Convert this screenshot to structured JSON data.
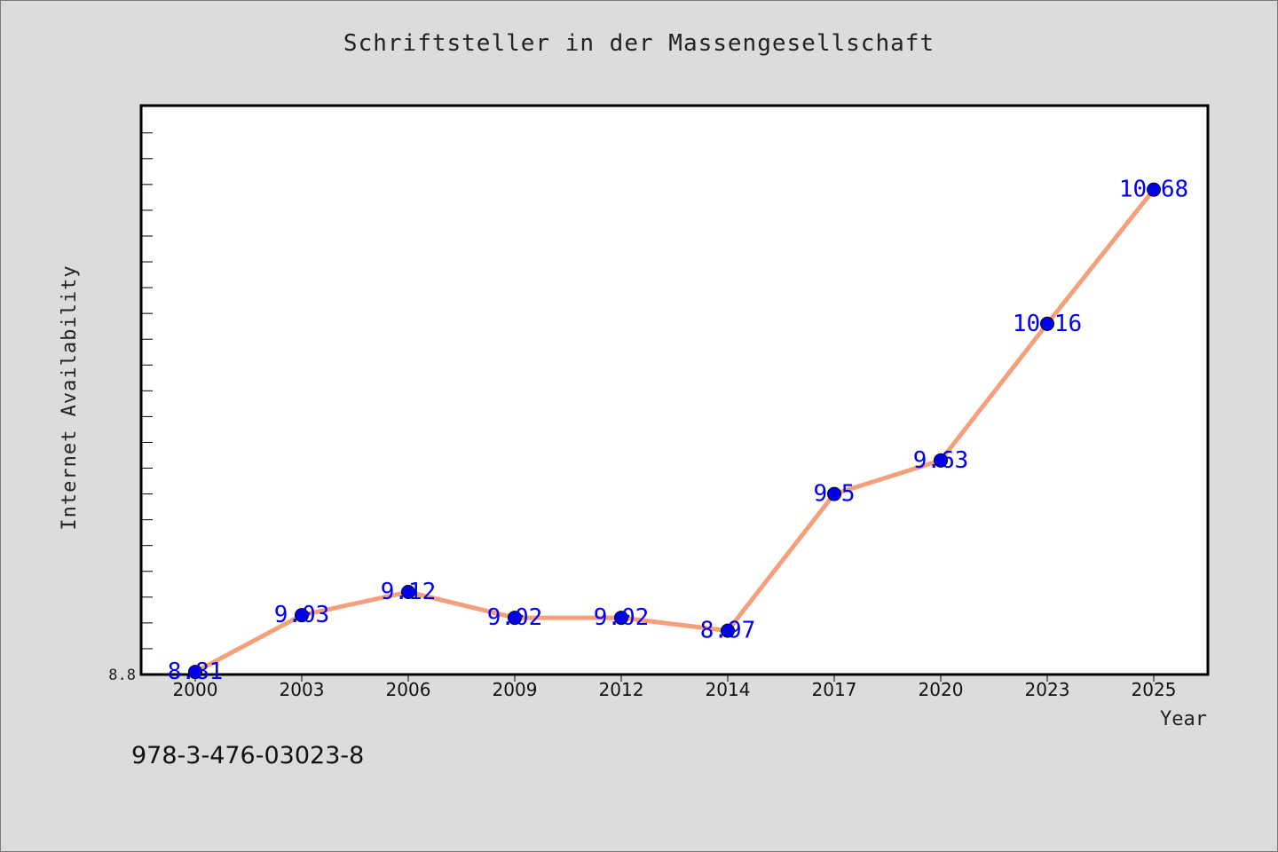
{
  "chart_data": {
    "type": "line",
    "title": "Schriftsteller in der Massengesellschaft",
    "xlabel": "Year",
    "ylabel": "Internet Availability",
    "categories": [
      "2000",
      "2003",
      "2006",
      "2009",
      "2012",
      "2014",
      "2017",
      "2020",
      "2023",
      "2025"
    ],
    "series": [
      {
        "values": [
          8.81,
          9.03,
          9.12,
          9.02,
          9.02,
          8.97,
          9.5,
          9.63,
          10.16,
          10.68
        ]
      }
    ],
    "data_labels": [
      "8.81",
      "9.03",
      "9.12",
      "9.02",
      "9.02",
      "8.97",
      "9.5",
      "9.63",
      "10.16",
      "10.68"
    ],
    "y_tick_label": "8.8",
    "ylim": [
      8.8,
      11.0
    ],
    "grid": false,
    "line_color": "#f4a07c",
    "marker_color": "#0000ee",
    "label_color": "#0000ee"
  },
  "footer": {
    "isbn": "978-3-476-03023-8"
  }
}
